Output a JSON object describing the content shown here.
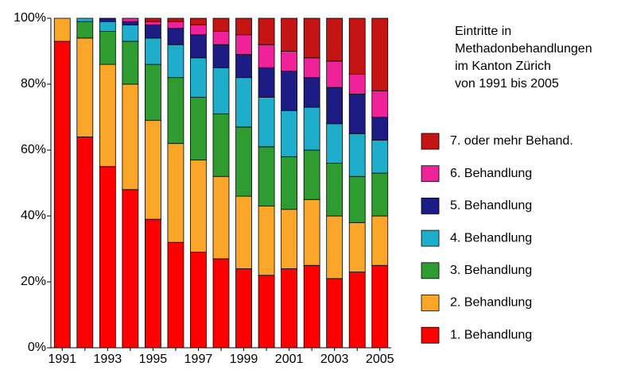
{
  "chart_data": {
    "type": "stacked_bar",
    "title": [
      "Eintritte in",
      "Methadonbehandlungen",
      "im Kanton Zürich",
      "von 1991 bis 2005"
    ],
    "categories": [
      "1991",
      null,
      "1993",
      null,
      "1995",
      null,
      "1997",
      null,
      "1999",
      null,
      "2001",
      null,
      "2003",
      null,
      "2005"
    ],
    "series": [
      {
        "name": "1. Behandlung",
        "color": "#ff0000",
        "values": [
          93,
          64,
          55,
          48,
          39,
          32,
          29,
          27,
          24,
          22,
          24,
          25,
          21,
          23,
          25
        ]
      },
      {
        "name": "2. Behandlung",
        "color": "#faa628",
        "values": [
          7,
          30,
          31,
          32,
          30,
          30,
          28,
          25,
          22,
          21,
          18,
          20,
          19,
          15,
          15
        ]
      },
      {
        "name": "3. Behandlung",
        "color": "#2e9c30",
        "values": [
          0,
          5,
          10,
          13,
          17,
          20,
          19,
          19,
          21,
          18,
          16,
          15,
          16,
          14,
          13
        ]
      },
      {
        "name": "4. Behandlung",
        "color": "#1eaecc",
        "values": [
          0,
          1,
          3,
          5,
          8,
          10,
          12,
          14,
          15,
          15,
          14,
          13,
          12,
          13,
          10
        ]
      },
      {
        "name": "5. Behandlung",
        "color": "#1c1c84",
        "values": [
          0,
          0,
          1,
          1,
          4,
          5,
          7,
          7,
          7,
          9,
          12,
          9,
          11,
          12,
          7
        ]
      },
      {
        "name": "6. Behandlung",
        "color": "#f0229a",
        "values": [
          0,
          0,
          0,
          1,
          1,
          2,
          3,
          4,
          6,
          7,
          6,
          6,
          8,
          6,
          8
        ]
      },
      {
        "name": "7. oder mehr Behand.",
        "color": "#c41414",
        "values": [
          0,
          0,
          0,
          0,
          1,
          1,
          2,
          4,
          5,
          8,
          10,
          12,
          13,
          17,
          22
        ]
      }
    ],
    "ylim": [
      0,
      100
    ],
    "yticks": [
      {
        "value": 0,
        "label": "0%"
      },
      {
        "value": 20,
        "label": "20%"
      },
      {
        "value": 40,
        "label": "40%"
      },
      {
        "value": 60,
        "label": "60%"
      },
      {
        "value": 80,
        "label": "80%"
      },
      {
        "value": 100,
        "label": "100%"
      }
    ],
    "legend": "right"
  }
}
